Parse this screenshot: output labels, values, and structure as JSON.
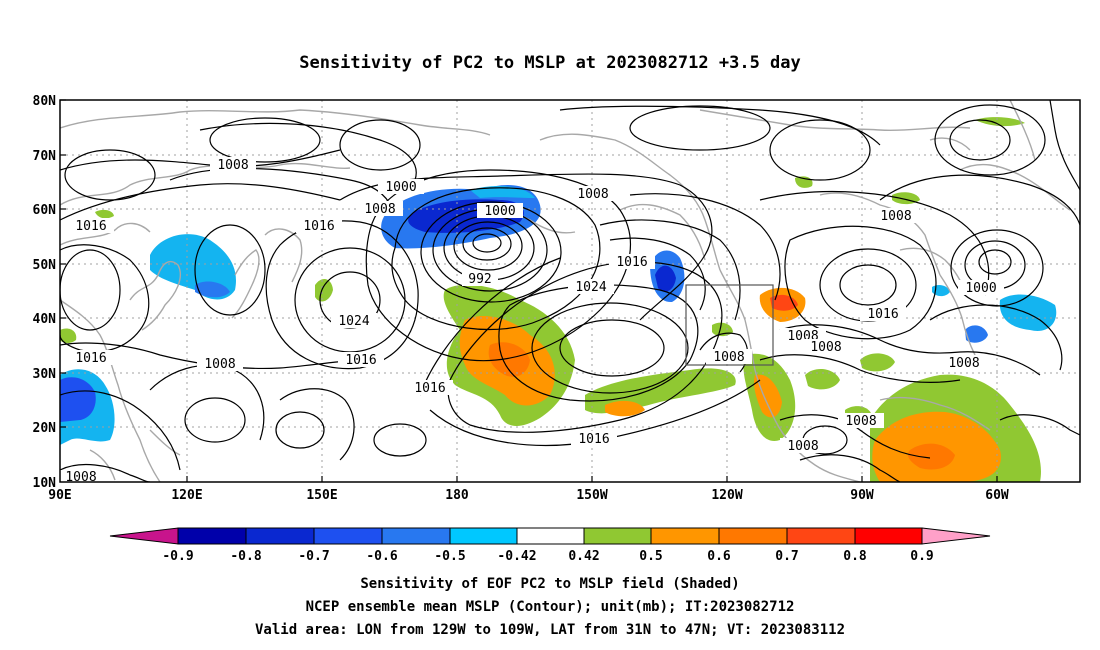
{
  "title": "Sensitivity of PC2 to MSLP at 2023082712 +3.5 day",
  "map": {
    "lat_labels": [
      "80N",
      "70N",
      "60N",
      "50N",
      "40N",
      "30N",
      "20N",
      "10N"
    ],
    "lon_labels": [
      "90E",
      "120E",
      "150E",
      "180",
      "150W",
      "120W",
      "90W",
      "60W"
    ],
    "contour_labels": [
      {
        "text": "1008"
      },
      {
        "text": "1000"
      },
      {
        "text": "1008"
      },
      {
        "text": "1016"
      },
      {
        "text": "1016"
      },
      {
        "text": "1000"
      },
      {
        "text": "992"
      },
      {
        "text": "1008"
      },
      {
        "text": "1016"
      },
      {
        "text": "1024"
      },
      {
        "text": "1024"
      },
      {
        "text": "1016"
      },
      {
        "text": "1008"
      },
      {
        "text": "1016"
      },
      {
        "text": "1016"
      },
      {
        "text": "1008"
      },
      {
        "text": "1016"
      },
      {
        "text": "1008"
      },
      {
        "text": "1008"
      },
      {
        "text": "1008"
      },
      {
        "text": "1008"
      },
      {
        "text": "1000"
      },
      {
        "text": "1016"
      },
      {
        "text": "1008"
      },
      {
        "text": "1008"
      },
      {
        "text": "1008"
      },
      {
        "text": "1008"
      }
    ],
    "colors": {
      "neg_09": "#0000aa",
      "neg_08": "#0a28d0",
      "neg_07": "#1e50f0",
      "neg_06": "#2878f0",
      "neg_05": "#14b4f0",
      "neg_042": "#00c8ff",
      "pos_042": "#90c832",
      "pos_05": "#ff9600",
      "pos_06": "#ff7800",
      "pos_07": "#ff4614",
      "pos_08": "#ff0000",
      "under": "#c8148c",
      "over": "#ffa0c8"
    }
  },
  "colorbar": {
    "labels": [
      "-0.9",
      "-0.8",
      "-0.7",
      "-0.6",
      "-0.5",
      "-0.42",
      "0.42",
      "0.5",
      "0.6",
      "0.7",
      "0.8",
      "0.9"
    ]
  },
  "caption": {
    "line1": "Sensitivity of EOF PC2 to MSLP field (Shaded)",
    "line2": "NCEP ensemble mean MSLP (Contour); unit(mb); IT:2023082712",
    "line3": "Valid area: LON from 129W to 109W, LAT from 31N to 47N; VT: 2023083112"
  }
}
